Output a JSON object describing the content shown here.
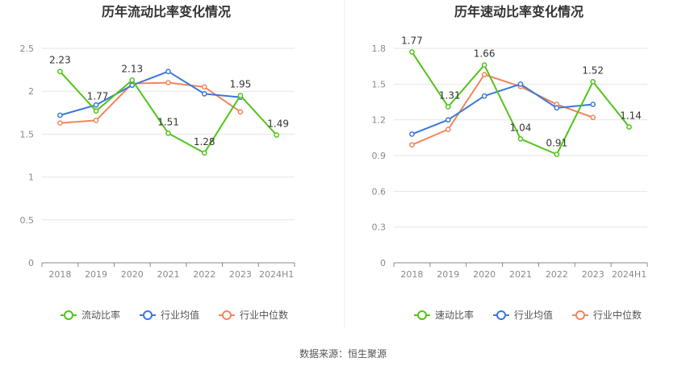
{
  "source_text": "数据来源：恒生聚源",
  "chart_data": [
    {
      "type": "line",
      "title": "历年流动比率变化情况",
      "categories": [
        "2018",
        "2019",
        "2020",
        "2021",
        "2022",
        "2023",
        "2024H1"
      ],
      "ylim": [
        0,
        2.5
      ],
      "yticks": [
        "0",
        "0.5",
        "1",
        "1.5",
        "2",
        "2.5"
      ],
      "ytick_values": [
        0,
        0.5,
        1,
        1.5,
        2,
        2.5
      ],
      "grid": true,
      "legend_position": "bottom",
      "series": [
        {
          "name": "流动比率",
          "color": "#52c41a",
          "labeled": true,
          "values": [
            2.23,
            1.77,
            2.13,
            1.51,
            1.28,
            1.95,
            1.49
          ]
        },
        {
          "name": "行业均值",
          "color": "#3b78d8",
          "labeled": false,
          "values": [
            1.72,
            1.84,
            2.07,
            2.23,
            1.97,
            1.93,
            null
          ]
        },
        {
          "name": "行业中位数",
          "color": "#f0865a",
          "labeled": false,
          "values": [
            1.63,
            1.66,
            2.09,
            2.1,
            2.05,
            1.76,
            null
          ]
        }
      ],
      "data_labels": [
        "2.23",
        "1.77",
        "2.13",
        "1.51",
        "1.28",
        "1.95",
        "1.49"
      ]
    },
    {
      "type": "line",
      "title": "历年速动比率变化情况",
      "categories": [
        "2018",
        "2019",
        "2020",
        "2021",
        "2022",
        "2023",
        "2024H1"
      ],
      "ylim": [
        0,
        1.8
      ],
      "yticks": [
        "0",
        "0.3",
        "0.6",
        "0.9",
        "1.2",
        "1.5",
        "1.8"
      ],
      "ytick_values": [
        0,
        0.3,
        0.6,
        0.9,
        1.2,
        1.5,
        1.8
      ],
      "grid": true,
      "legend_position": "bottom",
      "series": [
        {
          "name": "速动比率",
          "color": "#52c41a",
          "labeled": true,
          "values": [
            1.77,
            1.31,
            1.66,
            1.04,
            0.91,
            1.52,
            1.14
          ]
        },
        {
          "name": "行业均值",
          "color": "#3b78d8",
          "labeled": false,
          "values": [
            1.08,
            1.2,
            1.4,
            1.5,
            1.3,
            1.33,
            null
          ]
        },
        {
          "name": "行业中位数",
          "color": "#f0865a",
          "labeled": false,
          "values": [
            0.99,
            1.12,
            1.58,
            1.48,
            1.33,
            1.22,
            null
          ]
        }
      ],
      "data_labels": [
        "1.77",
        "1.31",
        "1.66",
        "1.04",
        "0.91",
        "1.52",
        "1.14"
      ]
    }
  ]
}
